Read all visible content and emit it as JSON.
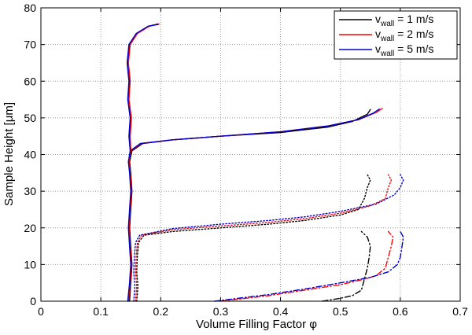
{
  "chart_data": {
    "type": "line",
    "title": "",
    "xlabel": "Volume Filling Factor φ",
    "ylabel": "Sample Height [μm]",
    "xlim": [
      0,
      0.7
    ],
    "ylim": [
      0,
      80
    ],
    "xticks": [
      "0",
      "0.1",
      "0.2",
      "0.3",
      "0.4",
      "0.5",
      "0.6",
      "0.7"
    ],
    "yticks": [
      "0",
      "10",
      "20",
      "30",
      "40",
      "50",
      "60",
      "70",
      "80"
    ],
    "grid": true,
    "legend_position": "top-right",
    "legend": [
      {
        "prefix": "v",
        "sub": "wall",
        "suffix": " = 1 m/s",
        "color": "#000000"
      },
      {
        "prefix": "v",
        "sub": "wall",
        "suffix": " = 2 m/s",
        "color": "#ff0000"
      },
      {
        "prefix": "v",
        "sub": "wall",
        "suffix": " = 5 m/s",
        "color": "#0000cc"
      }
    ],
    "series": [
      {
        "speed": "1 m/s",
        "color": "#000000",
        "style": "solid",
        "points": [
          [
            0.148,
            0
          ],
          [
            0.15,
            5
          ],
          [
            0.152,
            10
          ],
          [
            0.15,
            15
          ],
          [
            0.148,
            20
          ],
          [
            0.15,
            25
          ],
          [
            0.152,
            30
          ],
          [
            0.15,
            35
          ],
          [
            0.148,
            38
          ],
          [
            0.152,
            41
          ],
          [
            0.17,
            43
          ],
          [
            0.22,
            44
          ],
          [
            0.3,
            45
          ],
          [
            0.4,
            46
          ],
          [
            0.48,
            47.5
          ],
          [
            0.52,
            49
          ],
          [
            0.545,
            51
          ],
          [
            0.55,
            52.3
          ]
        ]
      },
      {
        "speed": "2 m/s",
        "color": "#ff0000",
        "style": "solid",
        "points": [
          [
            0.146,
            0
          ],
          [
            0.149,
            5
          ],
          [
            0.151,
            10
          ],
          [
            0.149,
            15
          ],
          [
            0.147,
            20
          ],
          [
            0.149,
            25
          ],
          [
            0.151,
            30
          ],
          [
            0.149,
            35
          ],
          [
            0.147,
            38
          ],
          [
            0.15,
            41
          ],
          [
            0.168,
            43
          ],
          [
            0.22,
            44
          ],
          [
            0.3,
            45
          ],
          [
            0.4,
            46.2
          ],
          [
            0.48,
            47.8
          ],
          [
            0.53,
            49.5
          ],
          [
            0.56,
            51.5
          ],
          [
            0.57,
            52.6
          ]
        ]
      },
      {
        "speed": "5 m/s",
        "color": "#0000cc",
        "style": "solid",
        "points": [
          [
            0.145,
            0
          ],
          [
            0.148,
            5
          ],
          [
            0.15,
            10
          ],
          [
            0.148,
            15
          ],
          [
            0.146,
            20
          ],
          [
            0.148,
            25
          ],
          [
            0.15,
            30
          ],
          [
            0.148,
            35
          ],
          [
            0.146,
            38
          ],
          [
            0.149,
            41
          ],
          [
            0.166,
            43
          ],
          [
            0.22,
            44
          ],
          [
            0.3,
            45
          ],
          [
            0.4,
            46.2
          ],
          [
            0.48,
            47.8
          ],
          [
            0.53,
            49.5
          ],
          [
            0.555,
            51.3
          ],
          [
            0.565,
            52.4
          ]
        ]
      },
      {
        "speed": "1 m/s",
        "color": "#000000",
        "style": "solid",
        "points": [
          [
            0.15,
            41
          ],
          [
            0.148,
            45
          ],
          [
            0.15,
            50
          ],
          [
            0.146,
            55
          ],
          [
            0.148,
            60
          ],
          [
            0.145,
            65
          ],
          [
            0.148,
            70
          ],
          [
            0.16,
            73
          ],
          [
            0.18,
            75
          ],
          [
            0.195,
            75.6
          ]
        ]
      },
      {
        "speed": "2 m/s",
        "color": "#ff0000",
        "style": "solid",
        "points": [
          [
            0.15,
            41
          ],
          [
            0.149,
            45
          ],
          [
            0.151,
            50
          ],
          [
            0.147,
            55
          ],
          [
            0.149,
            60
          ],
          [
            0.146,
            65
          ],
          [
            0.149,
            70
          ],
          [
            0.161,
            73
          ],
          [
            0.181,
            75
          ],
          [
            0.197,
            75.6
          ]
        ]
      },
      {
        "speed": "5 m/s",
        "color": "#0000cc",
        "style": "solid",
        "points": [
          [
            0.149,
            41
          ],
          [
            0.147,
            45
          ],
          [
            0.149,
            50
          ],
          [
            0.145,
            55
          ],
          [
            0.147,
            60
          ],
          [
            0.144,
            65
          ],
          [
            0.147,
            70
          ],
          [
            0.159,
            73
          ],
          [
            0.179,
            75
          ],
          [
            0.196,
            75.5
          ]
        ]
      },
      {
        "speed": "1 m/s",
        "color": "#000000",
        "style": "dotted",
        "points": [
          [
            0.16,
            0
          ],
          [
            0.162,
            4
          ],
          [
            0.16,
            8
          ],
          [
            0.161,
            12
          ],
          [
            0.163,
            16
          ],
          [
            0.172,
            18
          ],
          [
            0.22,
            19
          ],
          [
            0.3,
            20
          ],
          [
            0.38,
            21
          ],
          [
            0.44,
            22
          ],
          [
            0.5,
            23.5
          ],
          [
            0.53,
            25
          ],
          [
            0.54,
            28
          ],
          [
            0.545,
            31
          ],
          [
            0.55,
            33
          ],
          [
            0.545,
            34.5
          ]
        ]
      },
      {
        "speed": "2 m/s",
        "color": "#ff0000",
        "style": "dotted",
        "points": [
          [
            0.158,
            0
          ],
          [
            0.16,
            4
          ],
          [
            0.158,
            8
          ],
          [
            0.159,
            12
          ],
          [
            0.161,
            16
          ],
          [
            0.168,
            18
          ],
          [
            0.22,
            19.5
          ],
          [
            0.3,
            20.5
          ],
          [
            0.38,
            21.5
          ],
          [
            0.44,
            22.5
          ],
          [
            0.5,
            24
          ],
          [
            0.55,
            26
          ],
          [
            0.575,
            28
          ],
          [
            0.58,
            31
          ],
          [
            0.585,
            33
          ],
          [
            0.58,
            34.5
          ]
        ]
      },
      {
        "speed": "5 m/s",
        "color": "#0000cc",
        "style": "dotted",
        "points": [
          [
            0.155,
            0
          ],
          [
            0.157,
            4
          ],
          [
            0.155,
            8
          ],
          [
            0.156,
            12
          ],
          [
            0.158,
            16
          ],
          [
            0.165,
            18
          ],
          [
            0.22,
            19.8
          ],
          [
            0.3,
            21
          ],
          [
            0.38,
            22
          ],
          [
            0.44,
            23
          ],
          [
            0.5,
            24.5
          ],
          [
            0.56,
            26.5
          ],
          [
            0.59,
            29
          ],
          [
            0.6,
            31
          ],
          [
            0.605,
            33
          ],
          [
            0.6,
            34.5
          ]
        ]
      },
      {
        "speed": "1 m/s",
        "color": "#000000",
        "style": "dashdot",
        "points": [
          [
            0.47,
            0
          ],
          [
            0.5,
            0.8
          ],
          [
            0.52,
            1.5
          ],
          [
            0.535,
            3
          ],
          [
            0.54,
            6
          ],
          [
            0.545,
            9
          ],
          [
            0.548,
            12
          ],
          [
            0.55,
            15
          ],
          [
            0.545,
            17.5
          ],
          [
            0.535,
            19
          ]
        ]
      },
      {
        "speed": "2 m/s",
        "color": "#ff0000",
        "style": "dashdot",
        "points": [
          [
            0.3,
            0
          ],
          [
            0.38,
            1.5
          ],
          [
            0.44,
            3
          ],
          [
            0.5,
            4.5
          ],
          [
            0.54,
            6
          ],
          [
            0.56,
            7
          ],
          [
            0.575,
            9
          ],
          [
            0.58,
            12
          ],
          [
            0.585,
            15
          ],
          [
            0.588,
            17.5
          ],
          [
            0.58,
            19
          ]
        ]
      },
      {
        "speed": "5 m/s",
        "color": "#0000cc",
        "style": "dashdot",
        "points": [
          [
            0.29,
            0
          ],
          [
            0.38,
            1.8
          ],
          [
            0.44,
            3.3
          ],
          [
            0.5,
            5
          ],
          [
            0.55,
            6.5
          ],
          [
            0.58,
            8
          ],
          [
            0.595,
            10
          ],
          [
            0.6,
            12
          ],
          [
            0.603,
            15
          ],
          [
            0.605,
            17.5
          ],
          [
            0.6,
            19
          ]
        ]
      }
    ]
  }
}
